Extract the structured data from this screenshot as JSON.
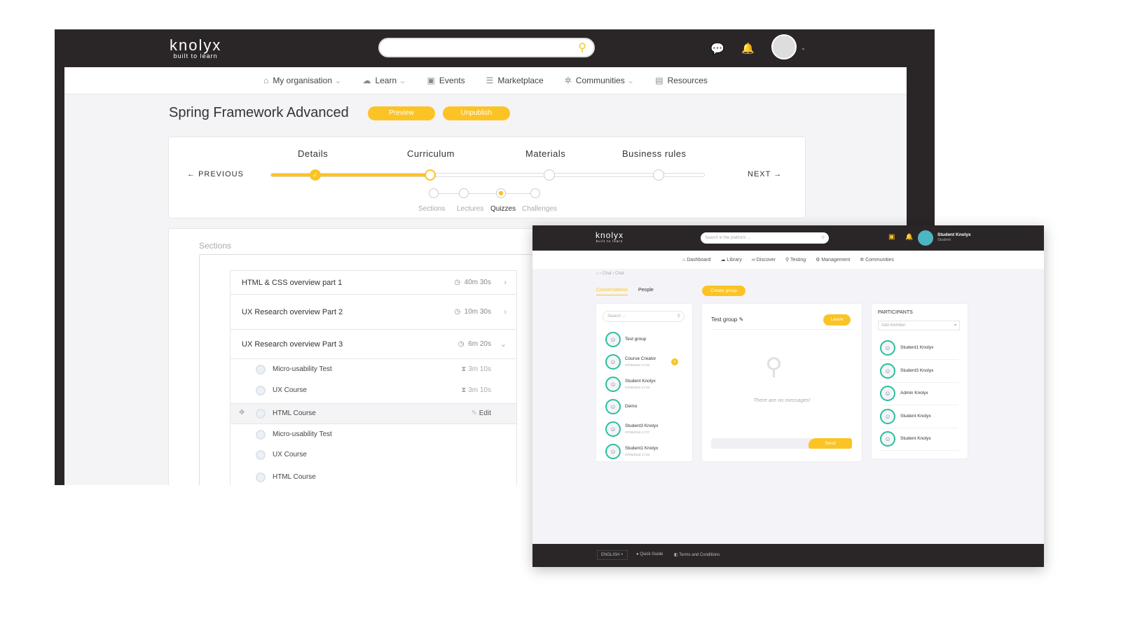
{
  "main_window": {
    "logo": "knolyx",
    "logo_tagline": "built to learn",
    "search_placeholder": "",
    "nav": [
      {
        "label": "My organisation",
        "icon": "home-icon",
        "dropdown": true
      },
      {
        "label": "Learn",
        "icon": "learn-icon",
        "dropdown": true
      },
      {
        "label": "Events",
        "icon": "calendar-icon",
        "dropdown": false
      },
      {
        "label": "Marketplace",
        "icon": "grid-icon",
        "dropdown": false
      },
      {
        "label": "Communities",
        "icon": "network-icon",
        "dropdown": true
      },
      {
        "label": "Resources",
        "icon": "resources-icon",
        "dropdown": false
      }
    ],
    "page_title": "Spring Framework Advanced",
    "preview_label": "Preview",
    "unpublish_label": "Unpublish",
    "steps": [
      "Details",
      "Curriculum",
      "Materials",
      "Business rules"
    ],
    "current_step": "Curriculum",
    "substeps": [
      "Sections",
      "Lectures",
      "Quizzes",
      "Challenges"
    ],
    "current_substep": "Quizzes",
    "previous_label": "PREVIOUS",
    "next_label": "NEXT",
    "sections_label": "Sections",
    "sections": [
      {
        "title": "HTML & CSS overview part 1",
        "duration": "40m 30s"
      },
      {
        "title": "UX Research overview Part 2",
        "duration": "10m 30s"
      },
      {
        "title": "UX Research overview Part 3",
        "duration": "6m 20s"
      }
    ],
    "lectures": [
      {
        "title": "Micro-usability Test",
        "meta": "3m 10s"
      },
      {
        "title": "UX Course",
        "meta": "3m 10s"
      },
      {
        "title": "HTML Course",
        "meta": "Edit"
      },
      {
        "title": "Micro-usability Test",
        "meta": ""
      },
      {
        "title": "UX Course",
        "meta": ""
      },
      {
        "title": "HTML Course",
        "meta": ""
      }
    ]
  },
  "chat_window": {
    "logo": "knolyx",
    "logo_tagline": "built to learn",
    "search_placeholder": "Search in the platform ...",
    "user_name": "Student Knolyx",
    "user_role": "Student",
    "nav": [
      "Dashboard",
      "Library",
      "Discover",
      "Testing",
      "Management",
      "Communities"
    ],
    "breadcrumb": [
      "Chat",
      "Chat"
    ],
    "tabs": [
      "Conversations",
      "People"
    ],
    "active_tab": "Conversations",
    "create_group_label": "Create group",
    "search_placeholder_conv": "Search ...",
    "conversations": [
      {
        "name": "Test group",
        "time": ""
      },
      {
        "name": "Course Creator",
        "time": "07/06/2018 17:32",
        "unread": "1"
      },
      {
        "name": "Student Knolyx",
        "time": "07/06/2018 17:29"
      },
      {
        "name": "Demo",
        "time": ""
      },
      {
        "name": "Student3 Knolyx",
        "time": "07/06/2018 17:07"
      },
      {
        "name": "Student1 Knolyx",
        "time": "07/06/2018 17:03"
      }
    ],
    "group_title": "Test group",
    "leave_label": "Leave",
    "empty_message": "There are no messages!",
    "send_label": "Send",
    "participants_title": "PARTICIPANTS",
    "add_member_placeholder": "Add member",
    "participants": [
      "Student1 Knolyx",
      "Student3 Knolyx",
      "Admin Knolyx",
      "Student Knolyx",
      "Student Knolyx"
    ],
    "footer": {
      "language": "ENGLISH",
      "quick_guide": "Quick Guide",
      "terms": "Terms and Conditions"
    }
  },
  "colors": {
    "accent": "#fcc324",
    "dark": "#2a2627",
    "avatar_ring": "#2bbf9d"
  }
}
